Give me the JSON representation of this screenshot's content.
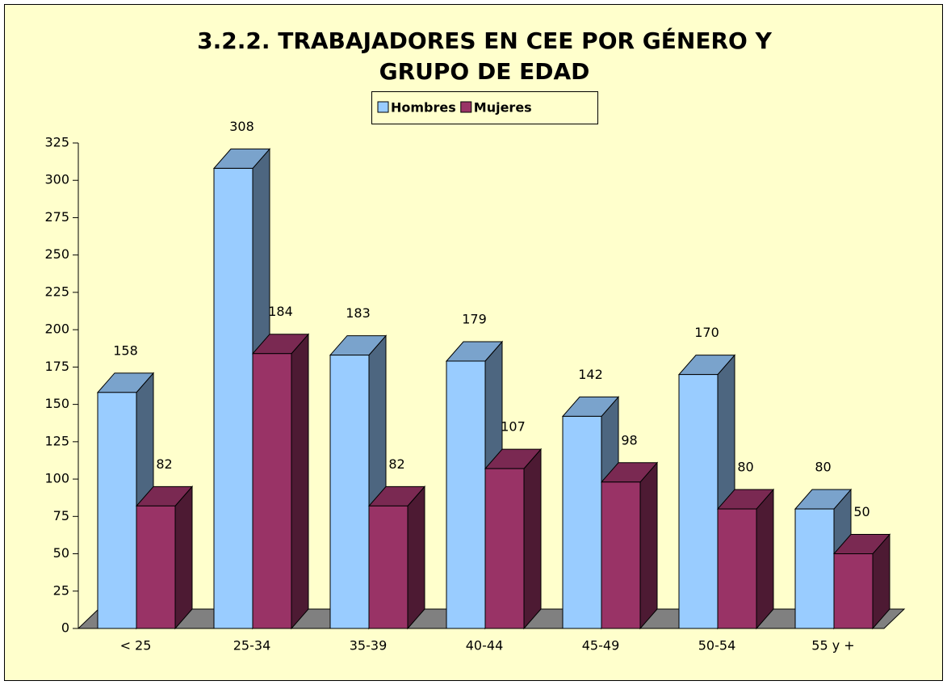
{
  "chart_data": {
    "type": "bar3d",
    "title": [
      "3.2.2. TRABAJADORES EN CEE POR GÉNERO Y",
      "GRUPO DE EDAD"
    ],
    "categories": [
      "< 25",
      "25-34",
      "35-39",
      "40-44",
      "45-49",
      "50-54",
      "55 y +"
    ],
    "series": [
      {
        "name": "Hombres",
        "color": "#99ccff",
        "values": [
          158,
          308,
          183,
          179,
          142,
          170,
          80
        ]
      },
      {
        "name": "Mujeres",
        "color": "#993366",
        "values": [
          82,
          184,
          82,
          107,
          98,
          80,
          50
        ]
      }
    ],
    "ylim": [
      0,
      325
    ],
    "yticks": [
      0,
      25,
      50,
      75,
      100,
      125,
      150,
      175,
      200,
      225,
      250,
      275,
      300,
      325
    ],
    "legend": "top"
  }
}
